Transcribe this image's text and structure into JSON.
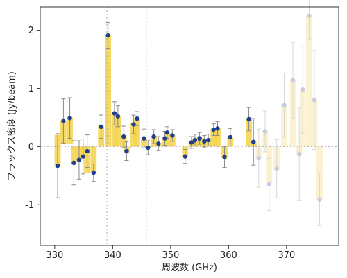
{
  "chart_data": {
    "type": "bar",
    "xlabel": "周波数 (GHz)",
    "ylabel": "フラックス密度 (Jy/beam)",
    "xlim": [
      327.5,
      379
    ],
    "ylim": [
      -1.7,
      2.4
    ],
    "xticks": [
      330,
      340,
      350,
      360,
      370
    ],
    "yticks": [
      -1,
      0,
      1,
      2
    ],
    "xtick_labels": [
      "330",
      "340",
      "350",
      "360",
      "370"
    ],
    "ytick_labels": [
      "-1",
      "0",
      "1",
      "2"
    ],
    "vlines": [
      339,
      345.8
    ],
    "hline": 0,
    "grid": false,
    "colors": {
      "bar": "#f5d24a",
      "bar_faded": "#fbf1cc",
      "marker": "#1f3f8f",
      "marker_faded": "#c7cbe4",
      "errorbar": "#8a8a8a",
      "errorbar_faded": "#d8d8d8",
      "refline": "#aaaaaa"
    },
    "series": [
      {
        "style": "normal",
        "points": [
          {
            "x": 330.5,
            "y": -0.33,
            "lo": -0.35,
            "hi": 0.2,
            "err": 0.55
          },
          {
            "x": 331.5,
            "y": 0.44,
            "lo": 0.05,
            "hi": 0.45,
            "err": 0.38
          },
          {
            "x": 332.6,
            "y": 0.49,
            "lo": 0.05,
            "hi": 0.5,
            "err": 0.35
          },
          {
            "x": 333.3,
            "y": -0.28,
            "lo": -0.28,
            "hi": 0.0,
            "err": 0.38
          },
          {
            "x": 334.2,
            "y": -0.23,
            "lo": -0.23,
            "hi": 0.0,
            "err": 0.33
          },
          {
            "x": 334.9,
            "y": -0.17,
            "lo": -0.17,
            "hi": 0.0,
            "err": 0.3
          },
          {
            "x": 335.6,
            "y": -0.08,
            "lo": -0.45,
            "hi": 0.0,
            "err": 0.28
          },
          {
            "x": 336.7,
            "y": -0.45,
            "lo": -0.45,
            "hi": 0.0,
            "err": 0.15
          },
          {
            "x": 338.0,
            "y": 0.34,
            "lo": 0.0,
            "hi": 0.35,
            "err": 0.2
          },
          {
            "x": 339.2,
            "y": 1.91,
            "lo": 0.0,
            "hi": 1.92,
            "err": 0.22
          },
          {
            "x": 340.3,
            "y": 0.57,
            "lo": 0.0,
            "hi": 0.58,
            "err": 0.2
          },
          {
            "x": 340.9,
            "y": 0.52,
            "lo": 0.0,
            "hi": 0.53,
            "err": 0.18
          },
          {
            "x": 341.9,
            "y": 0.17,
            "lo": 0.0,
            "hi": 0.18,
            "err": 0.18
          },
          {
            "x": 342.4,
            "y": -0.08,
            "lo": -0.1,
            "hi": 0.0,
            "err": 0.16
          },
          {
            "x": 343.6,
            "y": 0.38,
            "lo": 0.0,
            "hi": 0.4,
            "err": 0.16
          },
          {
            "x": 344.2,
            "y": 0.48,
            "lo": 0.0,
            "hi": 0.49,
            "err": 0.12
          },
          {
            "x": 345.4,
            "y": 0.14,
            "lo": 0.0,
            "hi": 0.14,
            "err": 0.16
          },
          {
            "x": 346.1,
            "y": -0.02,
            "lo": -0.03,
            "hi": 0.0,
            "err": 0.12
          },
          {
            "x": 347.1,
            "y": 0.17,
            "lo": 0.0,
            "hi": 0.18,
            "err": 0.12
          },
          {
            "x": 347.9,
            "y": 0.05,
            "lo": 0.0,
            "hi": 0.06,
            "err": 0.12
          },
          {
            "x": 349.0,
            "y": 0.14,
            "lo": 0.0,
            "hi": 0.15,
            "err": 0.12
          },
          {
            "x": 349.4,
            "y": 0.24,
            "lo": 0.0,
            "hi": 0.25,
            "err": 0.1
          },
          {
            "x": 350.3,
            "y": 0.19,
            "lo": 0.0,
            "hi": 0.2,
            "err": 0.1
          },
          {
            "x": 352.5,
            "y": -0.17,
            "lo": -0.18,
            "hi": 0.0,
            "err": 0.12
          },
          {
            "x": 353.6,
            "y": 0.07,
            "lo": 0.0,
            "hi": 0.08,
            "err": 0.1
          },
          {
            "x": 354.2,
            "y": 0.11,
            "lo": 0.0,
            "hi": 0.12,
            "err": 0.1
          },
          {
            "x": 355.0,
            "y": 0.14,
            "lo": 0.0,
            "hi": 0.15,
            "err": 0.1
          },
          {
            "x": 355.8,
            "y": 0.09,
            "lo": 0.0,
            "hi": 0.1,
            "err": 0.1
          },
          {
            "x": 356.5,
            "y": 0.11,
            "lo": 0.0,
            "hi": 0.12,
            "err": 0.1
          },
          {
            "x": 357.4,
            "y": 0.29,
            "lo": 0.0,
            "hi": 0.3,
            "err": 0.1
          },
          {
            "x": 358.1,
            "y": 0.31,
            "lo": 0.0,
            "hi": 0.32,
            "err": 0.12
          },
          {
            "x": 359.3,
            "y": -0.18,
            "lo": -0.2,
            "hi": 0.0,
            "err": 0.18
          },
          {
            "x": 360.3,
            "y": 0.16,
            "lo": 0.0,
            "hi": 0.17,
            "err": 0.15
          },
          {
            "x": 363.5,
            "y": 0.47,
            "lo": 0.0,
            "hi": 0.48,
            "err": 0.2
          },
          {
            "x": 364.3,
            "y": 0.08,
            "lo": 0.0,
            "hi": 0.09,
            "err": 0.4
          }
        ]
      },
      {
        "style": "faded",
        "points": [
          {
            "x": 365.2,
            "y": -0.2,
            "lo": -0.21,
            "hi": 0.0,
            "err": 0.5
          },
          {
            "x": 366.3,
            "y": 0.26,
            "lo": 0.0,
            "hi": 0.27,
            "err": 0.35
          },
          {
            "x": 367.0,
            "y": -0.65,
            "lo": -0.65,
            "hi": 0.0,
            "err": 0.45
          },
          {
            "x": 368.3,
            "y": -0.38,
            "lo": -0.4,
            "hi": 0.0,
            "err": 0.5
          },
          {
            "x": 369.6,
            "y": 0.71,
            "lo": 0.0,
            "hi": 0.72,
            "err": 0.55
          },
          {
            "x": 371.1,
            "y": 1.14,
            "lo": 0.0,
            "hi": 1.15,
            "err": 0.65
          },
          {
            "x": 372.2,
            "y": -0.13,
            "lo": -0.14,
            "hi": 0.0,
            "err": 0.8
          },
          {
            "x": 372.8,
            "y": 0.98,
            "lo": 0.0,
            "hi": 0.99,
            "err": 0.75
          },
          {
            "x": 373.9,
            "y": 2.25,
            "lo": 0.0,
            "hi": 2.26,
            "err": 0.4
          },
          {
            "x": 374.8,
            "y": 0.8,
            "lo": 0.0,
            "hi": 0.81,
            "err": 0.85
          },
          {
            "x": 375.7,
            "y": -0.91,
            "lo": -0.92,
            "hi": 0.0,
            "err": 0.45
          }
        ]
      }
    ]
  }
}
